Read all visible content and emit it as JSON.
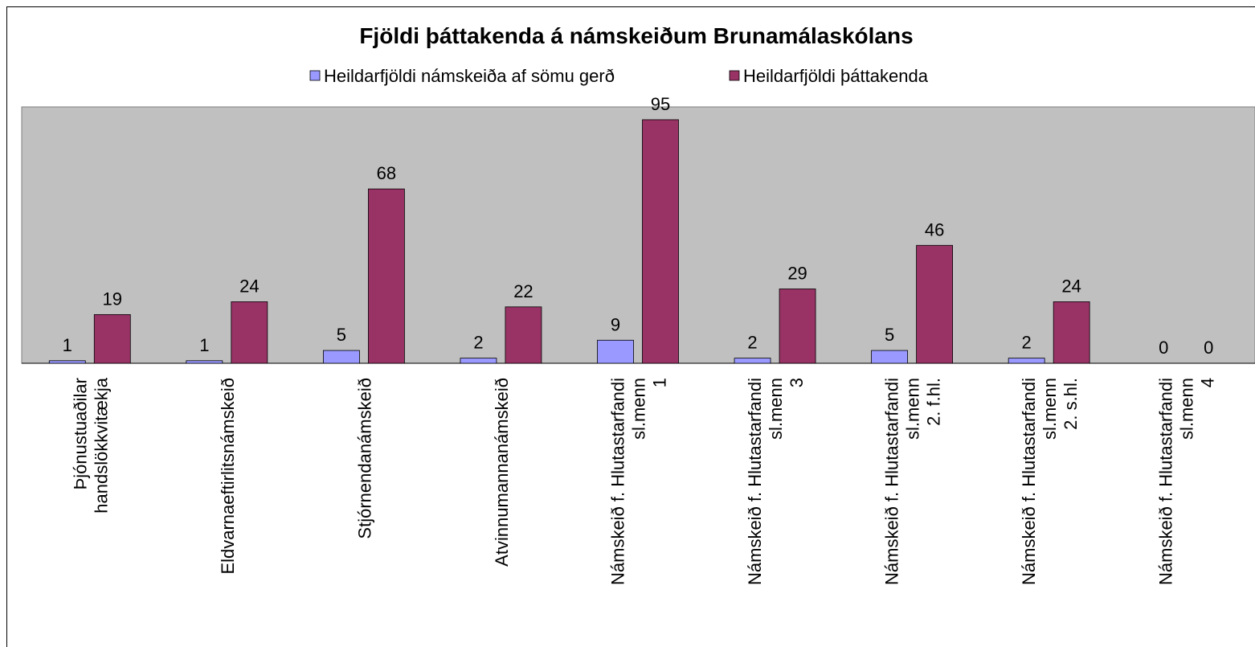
{
  "chart_data": {
    "type": "bar",
    "title": "Fjöldi þáttakenda á námskeiðum Brunamálaskólans",
    "categories": [
      [
        "Þjónustuaðilar",
        "handslökkvitækja"
      ],
      [
        "Eldvarnaeftirlitsnámskeið"
      ],
      [
        "Stjórnendanámskeið"
      ],
      [
        "Atvinnumannanámskeið"
      ],
      [
        "Námskeið f. Hlutastarfandi",
        "sl.menn",
        "1"
      ],
      [
        "Námskeið f. Hlutastarfandi",
        "sl.menn",
        "3"
      ],
      [
        "Námskeið f. Hlutastarfandi",
        "sl.menn",
        "2. f.hl."
      ],
      [
        "Námskeið f. Hlutastarfandi",
        "sl.menn",
        "2. s.hl."
      ],
      [
        "Námskeið f. Hlutastarfandi",
        "sl.menn",
        "4"
      ]
    ],
    "series": [
      {
        "name": "Heildarfjöldi námskeiða af sömu gerð",
        "color": "#9999ff",
        "values": [
          1,
          1,
          5,
          2,
          9,
          2,
          5,
          2,
          0
        ]
      },
      {
        "name": "Heildarfjöldi þáttakenda",
        "color": "#993366",
        "values": [
          19,
          24,
          68,
          22,
          95,
          29,
          46,
          24,
          0
        ]
      }
    ],
    "ylim": [
      0,
      100
    ],
    "plot_background": "#c0c0c0"
  }
}
